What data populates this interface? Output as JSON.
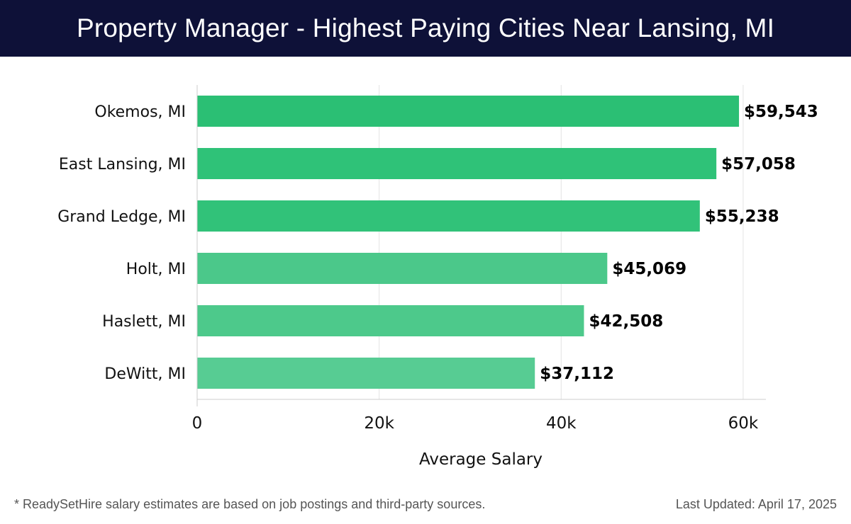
{
  "header": {
    "title": "Property Manager - Highest Paying Cities Near Lansing, MI"
  },
  "chart_data": {
    "type": "bar",
    "orientation": "horizontal",
    "categories": [
      "Okemos, MI",
      "East Lansing, MI",
      "Grand Ledge, MI",
      "Holt, MI",
      "Haslett, MI",
      "DeWitt, MI"
    ],
    "values": [
      59543,
      57058,
      55238,
      45069,
      42508,
      37112
    ],
    "value_labels": [
      "$59,543",
      "$57,058",
      "$55,238",
      "$45,069",
      "$42,508",
      "$37,112"
    ],
    "bar_colors": [
      "#2bbf74",
      "#2fc278",
      "#31c279",
      "#4bc88a",
      "#4dc98b",
      "#57cc93"
    ],
    "xlabel": "Average Salary",
    "ylabel": "",
    "xlim": [
      0,
      62500
    ],
    "xticks": [
      0,
      20000,
      40000,
      60000
    ],
    "xtick_labels": [
      "0",
      "20k",
      "40k",
      "60k"
    ],
    "grid": "vertical"
  },
  "footer": {
    "note": "* ReadySetHire salary estimates are based on job postings and third-party sources.",
    "updated": "Last Updated: April 17, 2025"
  }
}
